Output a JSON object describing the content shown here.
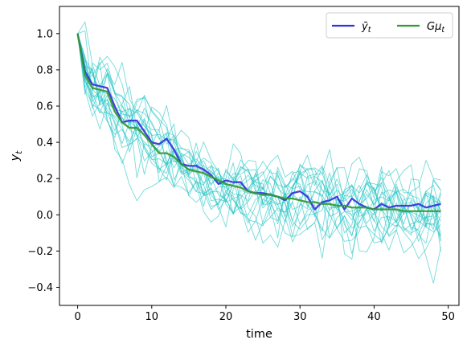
{
  "chart_data": {
    "type": "line",
    "xlabel": "time",
    "ylabel": "y",
    "ylabel_subscript": "t",
    "xlim": [
      -2.45,
      51.45
    ],
    "ylim": [
      -0.5,
      1.15
    ],
    "xticks": [
      0,
      10,
      20,
      30,
      40,
      50
    ],
    "yticks": [
      -0.4,
      -0.2,
      0.0,
      0.2,
      0.4,
      0.6,
      0.8,
      1.0
    ],
    "ytick_labels": [
      "−0.4",
      "−0.2",
      "0.0",
      "0.2",
      "0.4",
      "0.6",
      "0.8",
      "1.0"
    ],
    "grid": false,
    "legend": {
      "placement": "top-right",
      "entries": [
        {
          "label": "ȳ",
          "label_sub": "t",
          "color": "#3333dd"
        },
        {
          "label": "Gμ",
          "label_sub": "t",
          "color": "#339933"
        }
      ]
    },
    "colors": {
      "mean": "#3333dd",
      "theory": "#339933",
      "paths": "#22c4c4"
    },
    "x": [
      0,
      1,
      2,
      3,
      4,
      5,
      6,
      7,
      8,
      9,
      10,
      11,
      12,
      13,
      14,
      15,
      16,
      17,
      18,
      19,
      20,
      21,
      22,
      23,
      24,
      25,
      26,
      27,
      28,
      29,
      30,
      31,
      32,
      33,
      34,
      35,
      36,
      37,
      38,
      39,
      40,
      41,
      42,
      43,
      44,
      45,
      46,
      47,
      48,
      49
    ],
    "series": [
      {
        "name": "ȳ_t",
        "values": [
          1.0,
          0.79,
          0.72,
          0.71,
          0.7,
          0.6,
          0.51,
          0.52,
          0.52,
          0.46,
          0.4,
          0.39,
          0.42,
          0.36,
          0.28,
          0.27,
          0.27,
          0.25,
          0.22,
          0.17,
          0.19,
          0.18,
          0.18,
          0.13,
          0.12,
          0.12,
          0.11,
          0.1,
          0.08,
          0.12,
          0.13,
          0.1,
          0.03,
          0.07,
          0.08,
          0.1,
          0.03,
          0.09,
          0.06,
          0.04,
          0.03,
          0.06,
          0.04,
          0.05,
          0.05,
          0.05,
          0.06,
          0.04,
          0.05,
          0.06
        ]
      },
      {
        "name": "Gμ_t",
        "values": [
          1.0,
          0.77,
          0.7,
          0.69,
          0.68,
          0.57,
          0.51,
          0.48,
          0.48,
          0.44,
          0.39,
          0.34,
          0.34,
          0.32,
          0.28,
          0.25,
          0.24,
          0.23,
          0.21,
          0.19,
          0.17,
          0.16,
          0.15,
          0.13,
          0.12,
          0.11,
          0.11,
          0.1,
          0.09,
          0.09,
          0.08,
          0.07,
          0.07,
          0.06,
          0.06,
          0.05,
          0.05,
          0.04,
          0.04,
          0.04,
          0.03,
          0.03,
          0.03,
          0.03,
          0.02,
          0.02,
          0.02,
          0.02,
          0.02,
          0.02
        ]
      }
    ]
  }
}
